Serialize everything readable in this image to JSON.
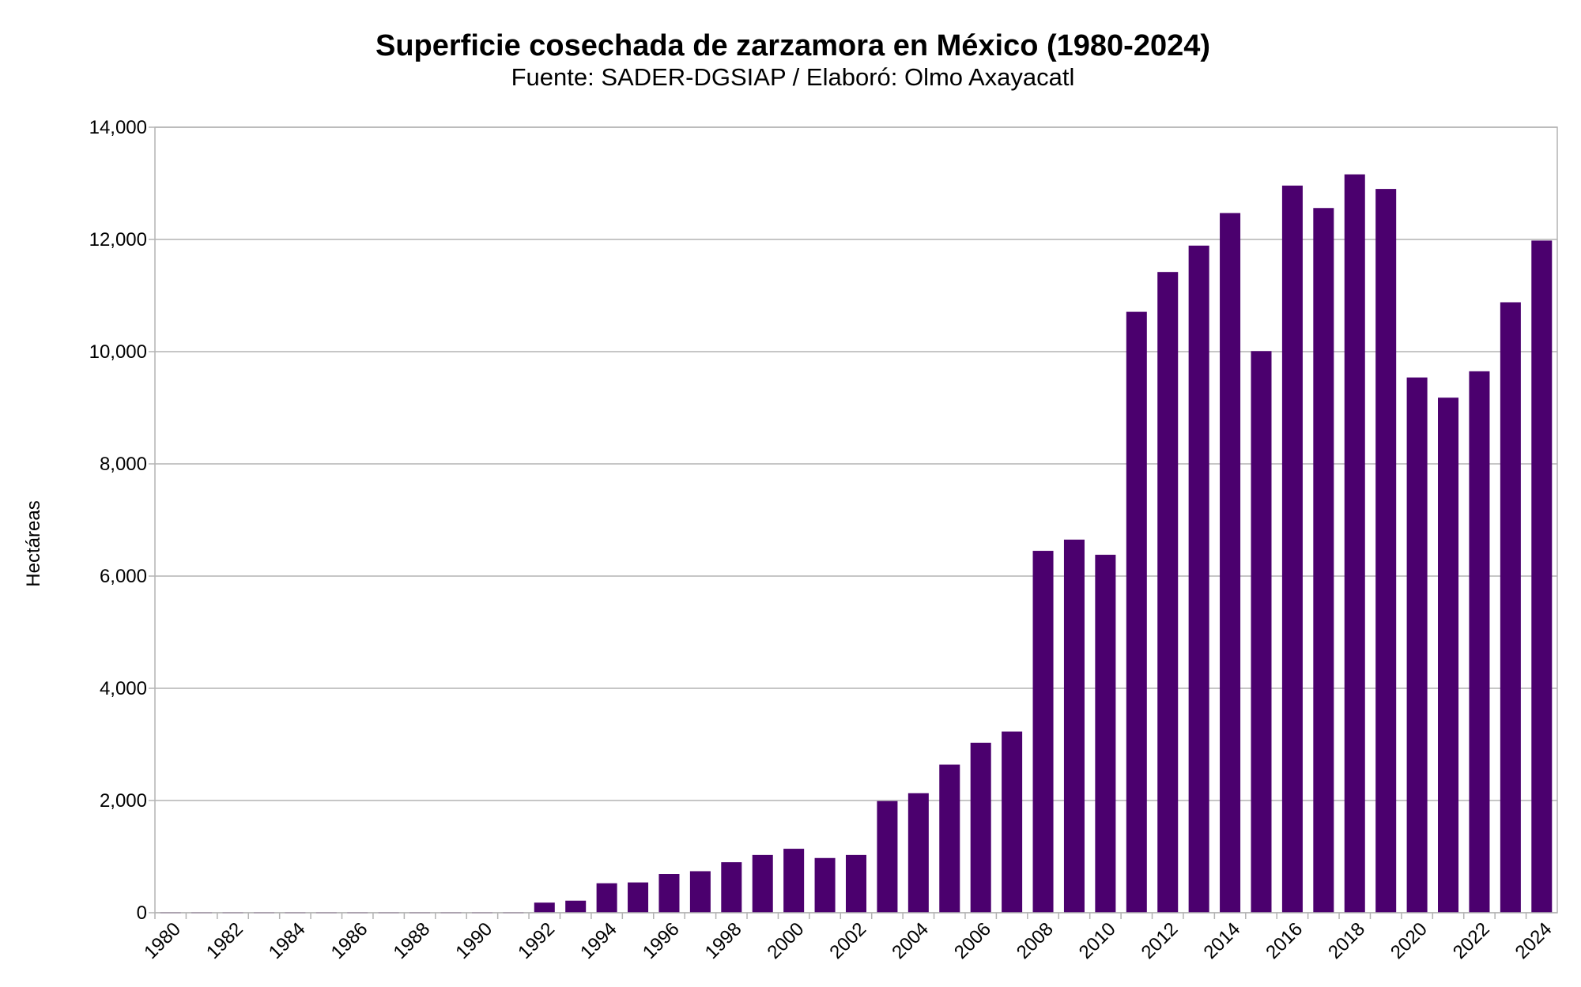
{
  "chart_data": {
    "type": "bar",
    "title": "Superficie cosechada de zarzamora en México (1980-2024)",
    "subtitle": "Fuente: SADER-DGSIAP / Elaboró: Olmo Axayacatl",
    "xlabel": "",
    "ylabel": "Hectáreas",
    "ylim": [
      0,
      14000
    ],
    "yticks": [
      "0",
      "2,000",
      "4,000",
      "6,000",
      "8,000",
      "10,000",
      "12,000",
      "14,000"
    ],
    "ytick_values": [
      0,
      2000,
      4000,
      6000,
      8000,
      10000,
      12000,
      14000
    ],
    "grid": true,
    "legend": "none",
    "bar_color": "#4b006e",
    "categories": [
      "1980",
      "1981",
      "1982",
      "1983",
      "1984",
      "1985",
      "1986",
      "1987",
      "1988",
      "1989",
      "1990",
      "1991",
      "1992",
      "1993",
      "1994",
      "1995",
      "1996",
      "1997",
      "1998",
      "1999",
      "2000",
      "2001",
      "2002",
      "2003",
      "2004",
      "2005",
      "2006",
      "2007",
      "2008",
      "2009",
      "2010",
      "2011",
      "2012",
      "2013",
      "2014",
      "2015",
      "2016",
      "2017",
      "2018",
      "2019",
      "2020",
      "2021",
      "2022",
      "2023",
      "2024"
    ],
    "xtick_labels": [
      "1980",
      "1982",
      "1984",
      "1986",
      "1988",
      "1990",
      "1992",
      "1994",
      "1996",
      "1998",
      "2000",
      "2002",
      "2004",
      "2006",
      "2008",
      "2010",
      "2012",
      "2014",
      "2016",
      "2018",
      "2020",
      "2022",
      "2024"
    ],
    "values": [
      10,
      10,
      10,
      10,
      10,
      10,
      10,
      10,
      10,
      10,
      10,
      10,
      180,
      215,
      525,
      540,
      690,
      740,
      900,
      1030,
      1140,
      975,
      1030,
      1990,
      2130,
      2640,
      3030,
      3230,
      6450,
      6650,
      6380,
      10710,
      11420,
      11890,
      12470,
      10010,
      12960,
      12560,
      13160,
      12900,
      9540,
      9180,
      9650,
      10880,
      11980
    ]
  }
}
